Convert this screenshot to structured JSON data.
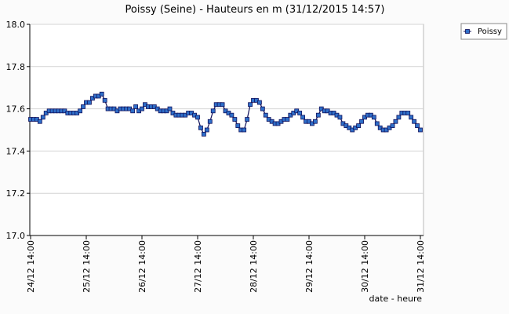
{
  "chart_data": {
    "type": "line",
    "title": "Poissy (Seine) - Hauteurs en m (31/12/2015 14:57)",
    "x_label": "date - heure",
    "categories": [
      "24/12 14:00",
      null,
      null,
      null,
      null,
      null,
      null,
      null,
      null,
      null,
      null,
      null,
      null,
      null,
      null,
      null,
      null,
      null,
      "25/12 14:00",
      null,
      null,
      null,
      null,
      null,
      null,
      null,
      null,
      null,
      null,
      null,
      null,
      null,
      null,
      null,
      null,
      null,
      "26/12 14:00",
      null,
      null,
      null,
      null,
      null,
      null,
      null,
      null,
      null,
      null,
      null,
      null,
      null,
      null,
      null,
      null,
      null,
      "27/12 14:00",
      null,
      null,
      null,
      null,
      null,
      null,
      null,
      null,
      null,
      null,
      null,
      null,
      null,
      null,
      null,
      null,
      null,
      "28/12 14:00",
      null,
      null,
      null,
      null,
      null,
      null,
      null,
      null,
      null,
      null,
      null,
      null,
      null,
      null,
      null,
      null,
      null,
      "29/12 14:00",
      null,
      null,
      null,
      null,
      null,
      null,
      null,
      null,
      null,
      null,
      null,
      null,
      null,
      null,
      null,
      null,
      null,
      "30/12 14:00",
      null,
      null,
      null,
      null,
      null,
      null,
      null,
      null,
      null,
      null,
      null,
      null,
      null,
      null,
      null,
      null,
      null,
      "31/12 14:00"
    ],
    "series": [
      {
        "name": "Poissy",
        "color": "#2f6fc9",
        "line_color": "#10105a",
        "values": [
          17.55,
          17.55,
          17.55,
          17.54,
          17.56,
          17.58,
          17.59,
          17.59,
          17.59,
          17.59,
          17.59,
          17.59,
          17.58,
          17.58,
          17.58,
          17.58,
          17.59,
          17.61,
          17.63,
          17.63,
          17.65,
          17.66,
          17.66,
          17.67,
          17.64,
          17.6,
          17.6,
          17.6,
          17.59,
          17.6,
          17.6,
          17.6,
          17.6,
          17.59,
          17.61,
          17.59,
          17.6,
          17.62,
          17.61,
          17.61,
          17.61,
          17.6,
          17.59,
          17.59,
          17.59,
          17.6,
          17.58,
          17.57,
          17.57,
          17.57,
          17.57,
          17.58,
          17.58,
          17.57,
          17.56,
          17.51,
          17.48,
          17.5,
          17.54,
          17.59,
          17.62,
          17.62,
          17.62,
          17.59,
          17.58,
          17.57,
          17.55,
          17.52,
          17.5,
          17.5,
          17.55,
          17.62,
          17.64,
          17.64,
          17.63,
          17.6,
          17.57,
          17.55,
          17.54,
          17.53,
          17.53,
          17.54,
          17.55,
          17.55,
          17.57,
          17.58,
          17.59,
          17.58,
          17.56,
          17.54,
          17.54,
          17.53,
          17.54,
          17.57,
          17.6,
          17.59,
          17.59,
          17.58,
          17.58,
          17.57,
          17.56,
          17.53,
          17.52,
          17.51,
          17.5,
          17.51,
          17.52,
          17.54,
          17.56,
          17.57,
          17.57,
          17.56,
          17.53,
          17.51,
          17.5,
          17.5,
          17.51,
          17.52,
          17.54,
          17.56,
          17.58,
          17.58,
          17.58,
          17.56,
          17.54,
          17.52,
          17.5
        ]
      }
    ],
    "ylim": [
      17.0,
      18.0
    ],
    "yticks": [
      {
        "value": 17.0,
        "label": "17.0"
      },
      17.2,
      17.4,
      17.6,
      17.8,
      {
        "value": 18.0,
        "label": "18.0"
      }
    ],
    "grid": true,
    "legend": "top right"
  }
}
